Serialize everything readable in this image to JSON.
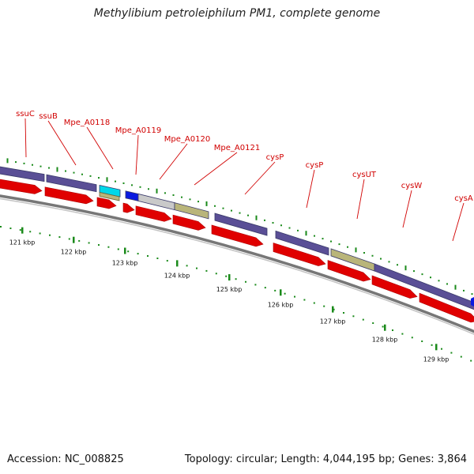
{
  "title": "Methylibium petroleiphilum PM1, complete genome",
  "footer": {
    "accession": "Accession: NC_008825",
    "stats": "Topology: circular; Length: 4,044,195 bp; Genes: 3,864"
  },
  "colors": {
    "cds": "#e00000",
    "cog_purple": "#5a4f96",
    "cog_khaki": "#b9b57a",
    "cog_cyan": "#00d8e8",
    "cog_blue": "#0a1ae0",
    "cog_gray": "#c9c9c9",
    "tick": "#1a8a1a",
    "label": "#d10000",
    "backbone": "#808080"
  },
  "gene_labels": [
    "ssuC",
    "ssuB",
    "Mpe_A0118",
    "Mpe_A0119",
    "Mpe_A0120",
    "Mpe_A0121",
    "cysP",
    "cysP",
    "cysUT",
    "cysW",
    "cysA"
  ],
  "kbp_labels": [
    "121 kbp",
    "122 kbp",
    "123 kbp",
    "124 kbp",
    "125 kbp",
    "126 kbp",
    "127 kbp",
    "128 kbp",
    "129 kbp"
  ]
}
